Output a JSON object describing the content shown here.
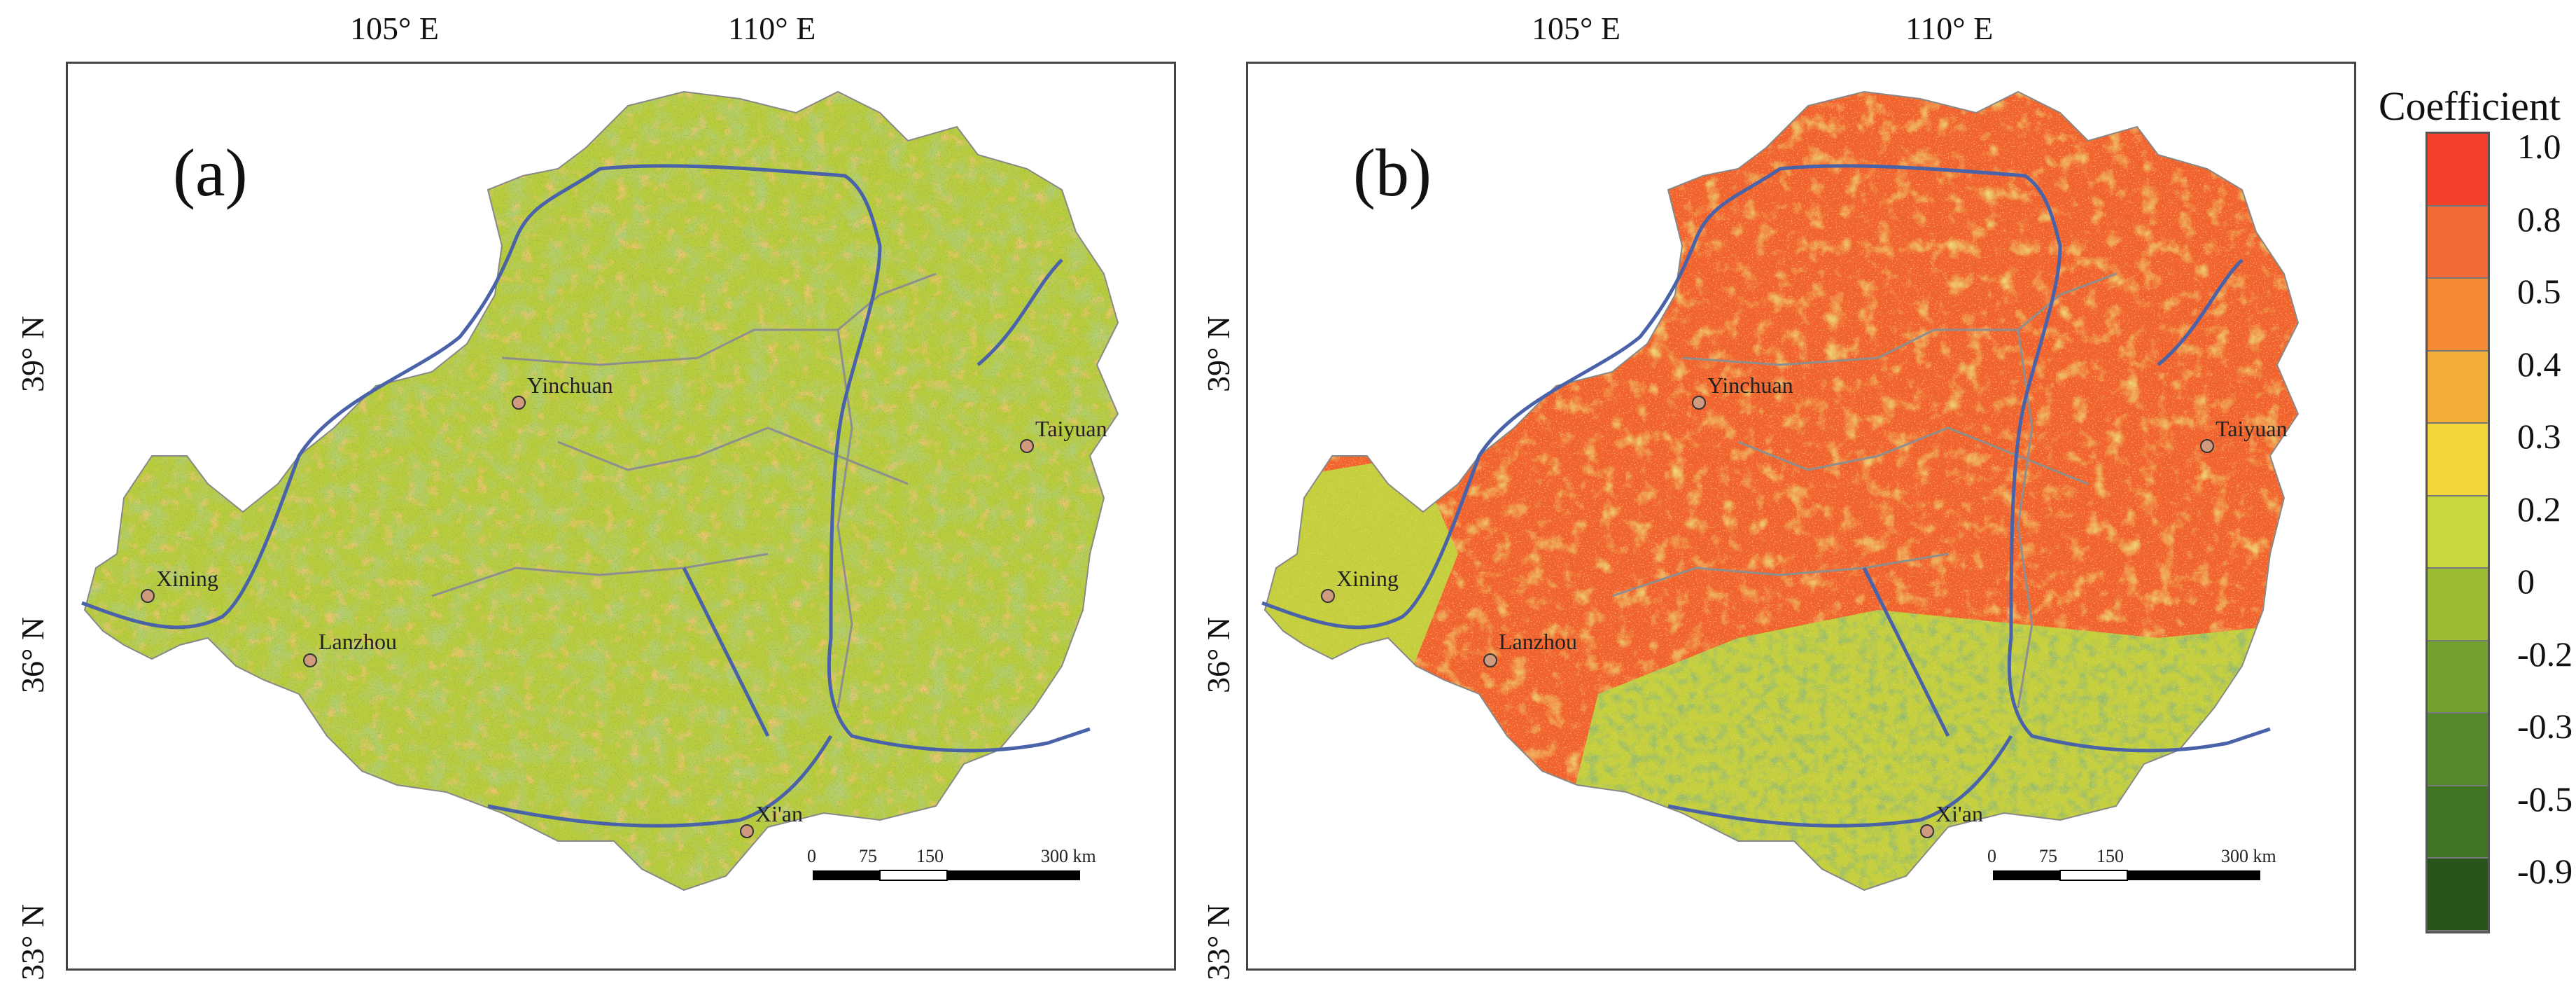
{
  "axes": {
    "lon_labels": [
      "105° E",
      "110° E"
    ],
    "lat_labels": [
      "39° N",
      "36° N",
      "33° N"
    ]
  },
  "panels": [
    {
      "letter": "(a)",
      "cities": [
        "Yinchuan",
        "Taiyuan",
        "Xining",
        "Lanzhou",
        "Xi'an"
      ],
      "scale": {
        "ticks": [
          "0",
          "75",
          "150",
          "300 km"
        ]
      },
      "palette": {
        "base": "#b9cc3c",
        "secondary": "#7ea534",
        "accent": "#e7a236"
      }
    },
    {
      "letter": "(b)",
      "cities": [
        "Yinchuan",
        "Taiyuan",
        "Xining",
        "Lanzhou",
        "Xi'an"
      ],
      "scale": {
        "ticks": [
          "0",
          "75",
          "150",
          "300 km"
        ]
      },
      "palette": {
        "base": "#f0632e",
        "secondary": "#c4cf3e",
        "accent": "#4e8a2e"
      }
    }
  ],
  "legend": {
    "title": "Coefficient",
    "ticks": [
      "1.0",
      "0.8",
      "0.5",
      "0.4",
      "0.3",
      "0.2",
      "0",
      "-0.2",
      "-0.3",
      "-0.5",
      "-0.9"
    ],
    "colors": [
      "#f3402a",
      "#f26b34",
      "#f48a34",
      "#f3ae3a",
      "#f3d73a",
      "#c9d83c",
      "#9bbc34",
      "#74a22f",
      "#558a2a",
      "#3e7424",
      "#28561a"
    ]
  },
  "colors": {
    "river": "#4a63a8",
    "boundary": "#8e8e8e",
    "city_marker": "#d09a7e"
  }
}
